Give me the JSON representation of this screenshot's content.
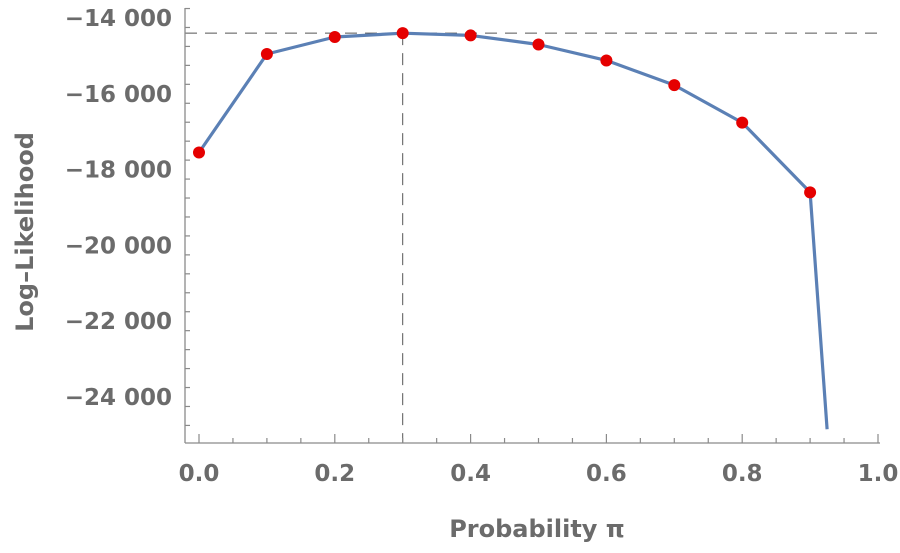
{
  "chart_data": {
    "type": "line",
    "xlabel": "Probability π",
    "ylabel": "Log–Likelihood",
    "xlim": [
      0.0,
      1.0
    ],
    "ylim": [
      -25000,
      -13750
    ],
    "x_ticks": [
      0.0,
      0.2,
      0.4,
      0.6,
      0.8,
      1.0
    ],
    "x_tick_labels": [
      "0.0",
      "0.2",
      "0.4",
      "0.6",
      "0.8",
      "1.0"
    ],
    "y_ticks": [
      -14000,
      -16000,
      -18000,
      -20000,
      -22000,
      -24000
    ],
    "y_tick_labels": [
      "−14 000",
      "−16 000",
      "−18 000",
      "−20 000",
      "−22 000",
      "−24 000"
    ],
    "series": [
      {
        "color": "#5b80b5",
        "x": [
          0.0,
          0.1,
          0.2,
          0.3,
          0.4,
          0.5,
          0.6,
          0.7,
          0.8,
          0.9,
          0.925
        ],
        "y": [
          -17550,
          -14950,
          -14500,
          -14400,
          -14460,
          -14700,
          -15120,
          -15770,
          -16760,
          -18600,
          -24850
        ]
      }
    ],
    "points": {
      "color": "#e50000",
      "x": [
        0.0,
        0.1,
        0.2,
        0.3,
        0.4,
        0.5,
        0.6,
        0.7,
        0.8,
        0.9
      ],
      "y": [
        -17550,
        -14950,
        -14500,
        -14400,
        -14460,
        -14700,
        -15120,
        -15770,
        -16760,
        -18600
      ]
    },
    "reference_lines": {
      "max_x": 0.3,
      "max_y": -14400
    },
    "grid": false
  }
}
